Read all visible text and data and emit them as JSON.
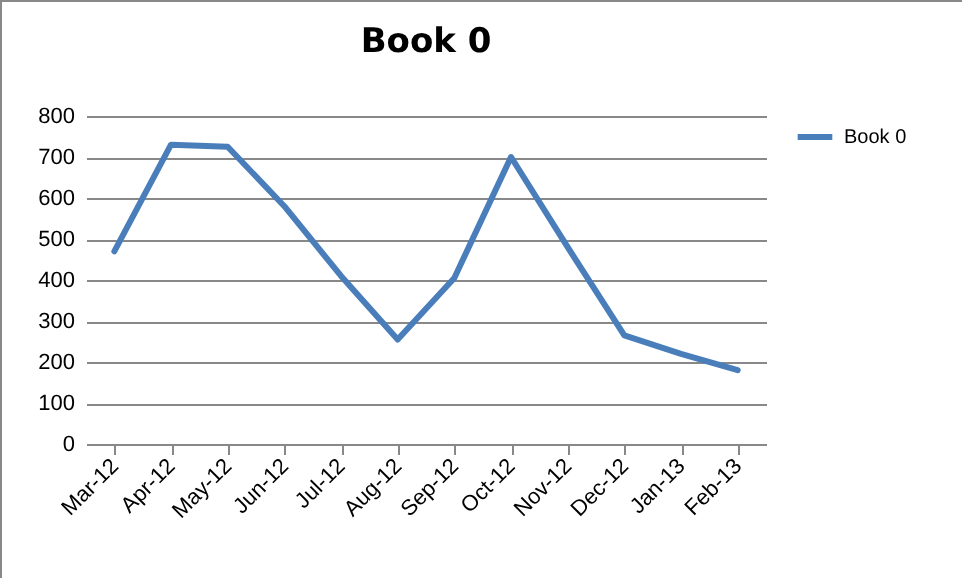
{
  "chart_data": {
    "type": "line",
    "title": "Book 0",
    "categories": [
      "Mar-12",
      "Apr-12",
      "May-12",
      "Jun-12",
      "Jul-12",
      "Aug-12",
      "Sep-12",
      "Oct-12",
      "Nov-12",
      "Dec-12",
      "Jan-13",
      "Feb-13"
    ],
    "series": [
      {
        "name": "Book 0",
        "color": "#4a7ebb",
        "values": [
          470,
          730,
          725,
          580,
          410,
          255,
          405,
          700,
          480,
          265,
          220,
          180
        ]
      }
    ],
    "ylim": [
      0,
      800
    ],
    "yticks": [
      0,
      100,
      200,
      300,
      400,
      500,
      600,
      700,
      800
    ],
    "grid": "y",
    "legend": "right",
    "marker": "none",
    "line_style": "solid"
  }
}
